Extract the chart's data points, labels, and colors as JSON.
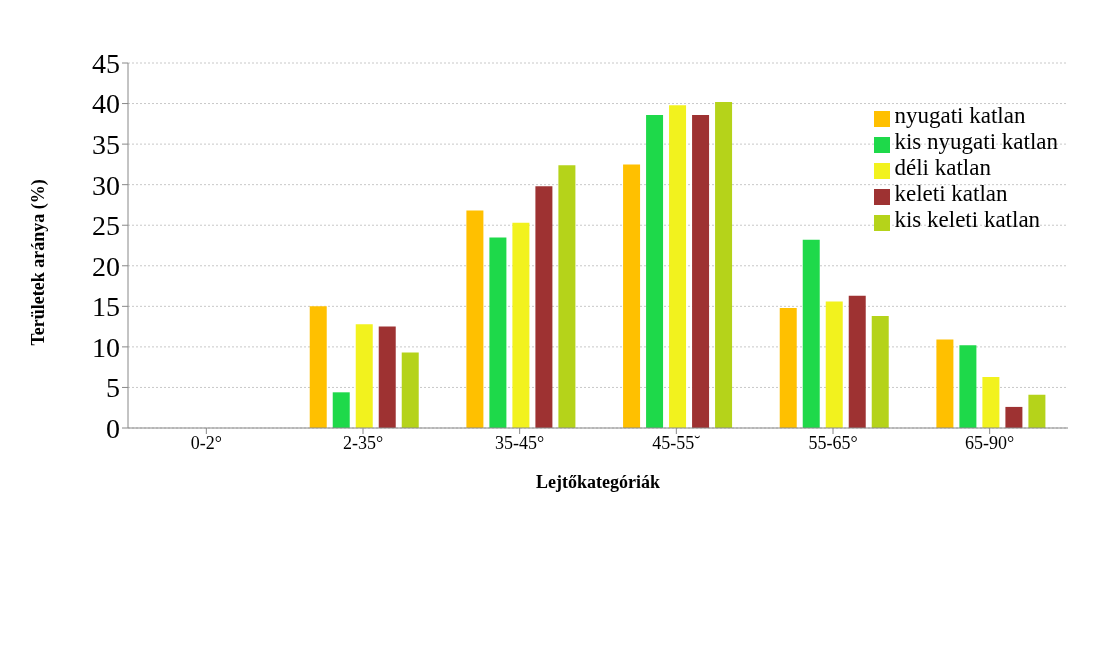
{
  "chart_data": {
    "type": "bar",
    "xlabel": "Lejtőkategóriák",
    "ylabel": "Területek aránya (%)",
    "categories": [
      "0-2°",
      "2-35°",
      "35-45°",
      "45-55˘",
      "55-65°",
      "65-90°"
    ],
    "series": [
      {
        "name": "nyugati katlan",
        "color": "#ffc000",
        "values": [
          0,
          15.0,
          26.8,
          32.5,
          14.8,
          10.9
        ]
      },
      {
        "name": "kis nyugati katlan",
        "color": "#1ed94a",
        "values": [
          0,
          4.4,
          23.5,
          38.6,
          23.2,
          10.2
        ]
      },
      {
        "name": "déli katlan",
        "color": "#f2f21e",
        "values": [
          0,
          12.8,
          25.3,
          39.8,
          15.6,
          6.3
        ]
      },
      {
        "name": "keleti katlan",
        "color": "#9e3232",
        "values": [
          0,
          12.5,
          29.8,
          38.6,
          16.3,
          2.6
        ]
      },
      {
        "name": "kis keleti katlan",
        "color": "#b5d31a",
        "values": [
          0,
          9.3,
          32.4,
          40.2,
          13.8,
          4.1
        ]
      }
    ],
    "ylim": [
      0,
      45
    ],
    "yticks": [
      0,
      5,
      10,
      15,
      20,
      25,
      30,
      35,
      40,
      45
    ],
    "grid": "y",
    "legend": "top right"
  }
}
